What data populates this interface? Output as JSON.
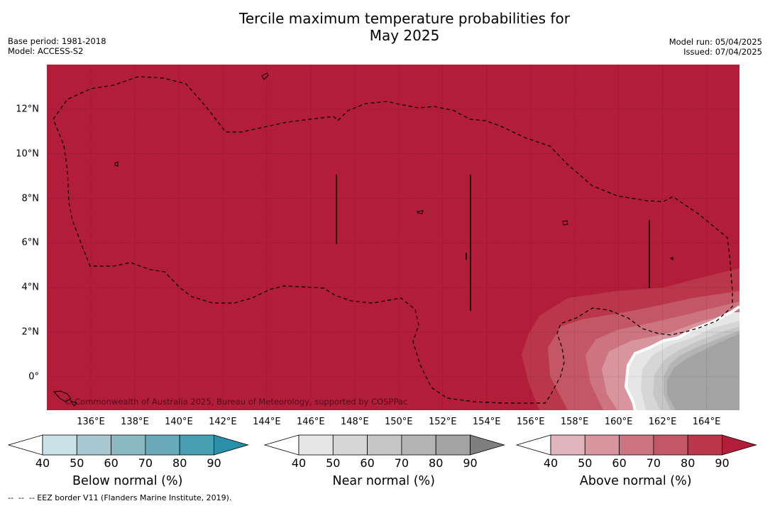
{
  "title_line1": "Tercile maximum temperature probabilities for",
  "title_line2": "May 2025",
  "meta_left": [
    "Base period: 1981-2018",
    "Model: ACCESS-S2"
  ],
  "meta_right": [
    "Model run: 05/04/2025",
    "Issued: 07/04/2025"
  ],
  "copyright": "© Commonwealth of Australia 2025, Bureau of Meteorology, supported by COSPPac",
  "footer": "--  --  -- EEZ border V11 (Flanders Marine Institute, 2019).",
  "map": {
    "lon_min": 134.0,
    "lon_max": 165.5,
    "lat_min": -1.5,
    "lat_max": 14.0,
    "x_ticks": [
      "136°E",
      "138°E",
      "140°E",
      "142°E",
      "144°E",
      "146°E",
      "148°E",
      "150°E",
      "152°E",
      "154°E",
      "156°E",
      "158°E",
      "160°E",
      "162°E",
      "164°E"
    ],
    "x_tick_values": [
      136,
      138,
      140,
      142,
      144,
      146,
      148,
      150,
      152,
      154,
      156,
      158,
      160,
      162,
      164
    ],
    "y_ticks": [
      "12°N",
      "10°N",
      "8°N",
      "6°N",
      "4°N",
      "2°N",
      "0°"
    ],
    "y_tick_values": [
      12,
      10,
      8,
      6,
      4,
      2,
      0
    ],
    "background_category": "Above normal",
    "background_probability": "90+"
  },
  "colorbars": [
    {
      "label": "Below normal (%)",
      "ticks": [
        "40",
        "50",
        "60",
        "70",
        "80",
        "90"
      ],
      "colors": [
        "#ffffff",
        "#c8e2e8",
        "#a8c9d1",
        "#8ab8c3",
        "#69aabb",
        "#47a0b2",
        "#2a8fa8"
      ]
    },
    {
      "label": "Near normal (%)",
      "ticks": [
        "40",
        "50",
        "60",
        "70",
        "80",
        "90"
      ],
      "colors": [
        "#ffffff",
        "#e6e6e6",
        "#d6d6d6",
        "#c6c6c6",
        "#b4b4b4",
        "#a3a3a3",
        "#7f7f7f"
      ]
    },
    {
      "label": "Above normal (%)",
      "ticks": [
        "40",
        "50",
        "60",
        "70",
        "80",
        "90"
      ],
      "colors": [
        "#ffffff",
        "#e0b5bc",
        "#d8959e",
        "#cc7580",
        "#c45766",
        "#b93749",
        "#b21d3a"
      ]
    }
  ],
  "colors": {
    "above_90": "#b21d3a",
    "eez_border": "#000000"
  }
}
